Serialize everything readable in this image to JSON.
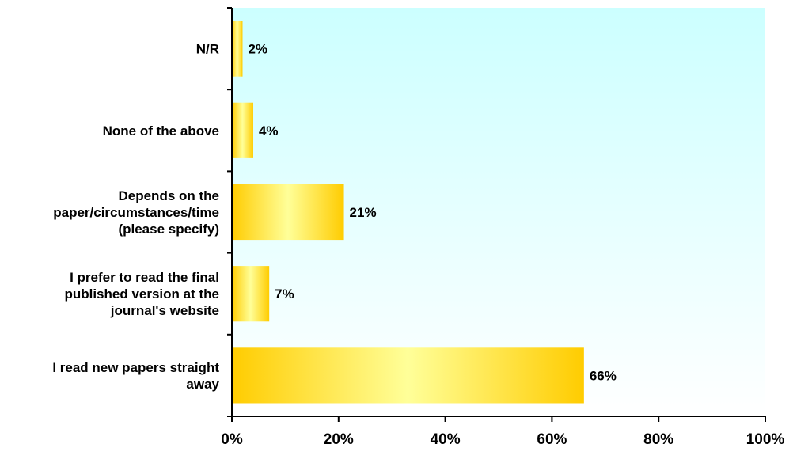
{
  "chart_data": {
    "type": "bar",
    "orientation": "horizontal",
    "title": "",
    "xlabel": "",
    "ylabel": "",
    "xlim": [
      0,
      100
    ],
    "x_ticks": [
      "0%",
      "20%",
      "40%",
      "60%",
      "80%",
      "100%"
    ],
    "x_tick_values": [
      0,
      20,
      40,
      60,
      80,
      100
    ],
    "grid": false,
    "legend": "none",
    "categories": [
      "N/R",
      "None of the above",
      "Depends on the paper/circumstances/time (please specify)",
      "I prefer to read the final published version at the journal's website",
      "I read new papers straight away"
    ],
    "category_lines": [
      [
        "N/R"
      ],
      [
        "None of the above"
      ],
      [
        "Depends on the",
        "paper/circumstances/time",
        "(please specify)"
      ],
      [
        "I prefer to read the final",
        "published version at the",
        "journal's website"
      ],
      [
        "I read new papers straight",
        "away"
      ]
    ],
    "values": [
      2,
      4,
      21,
      7,
      66
    ],
    "data_labels": [
      "2%",
      "4%",
      "21%",
      "7%",
      "66%"
    ],
    "colors": {
      "plot_background_top": "#ccffff",
      "plot_background_bottom": "#ffffff",
      "bar_edge": "#ffcc00",
      "bar_center": "#ffff99",
      "axis": "#000000"
    }
  }
}
